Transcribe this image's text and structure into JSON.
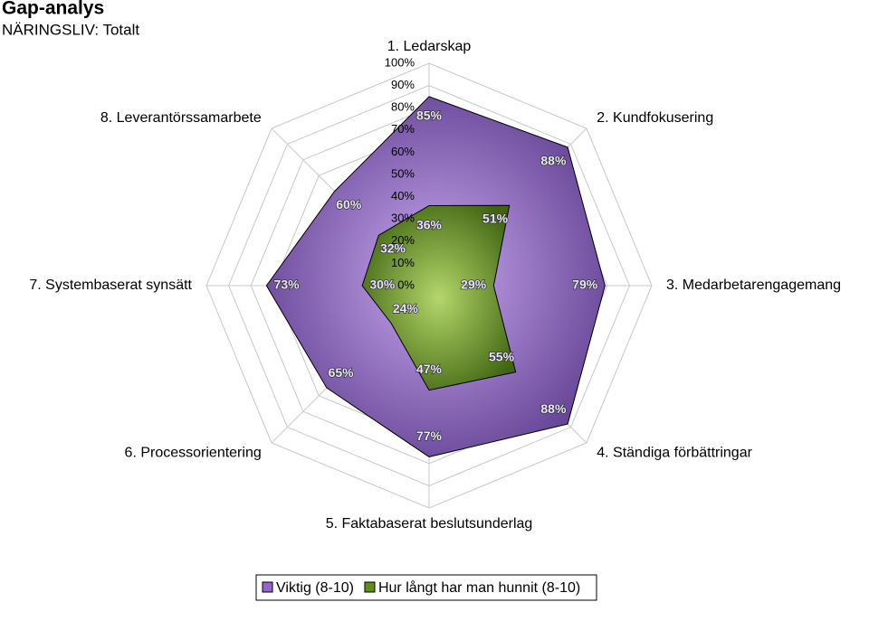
{
  "chart_data": {
    "type": "radar",
    "title": "Gap-analys",
    "subtitle": "NÄRINGSLIV: Totalt",
    "categories": [
      "1. Ledarskap",
      "2. Kundfokusering",
      "3. Medarbetarengagemang",
      "4. Ständiga förbättringar",
      "5. Faktabaserat beslutsunderlag",
      "6. Processorientering",
      "7. Systembaserat synsätt",
      "8. Leverantörssamarbete"
    ],
    "series": [
      {
        "name": "Viktig (8-10)",
        "color": "#9466cc",
        "values": [
          85,
          88,
          79,
          88,
          77,
          65,
          73,
          60
        ],
        "value_labels": [
          "85%",
          "88%",
          "79%",
          "88%",
          "77%",
          "65%",
          "73%",
          "60%"
        ]
      },
      {
        "name": "Hur långt har man hunnit (8-10)",
        "color": "#5f8f1a",
        "values": [
          36,
          51,
          29,
          55,
          47,
          24,
          30,
          32
        ],
        "value_labels": [
          "36%",
          "51%",
          "29%",
          "55%",
          "47%",
          "24%",
          "30%",
          "32%"
        ]
      }
    ],
    "ylim": [
      0,
      100
    ],
    "yticks": [
      {
        "value": 0,
        "label": "0%"
      },
      {
        "value": 10,
        "label": "10%"
      },
      {
        "value": 20,
        "label": "20%"
      },
      {
        "value": 30,
        "label": "30%"
      },
      {
        "value": 40,
        "label": "40%"
      },
      {
        "value": 50,
        "label": "50%"
      },
      {
        "value": 60,
        "label": "60%"
      },
      {
        "value": 70,
        "label": "70%"
      },
      {
        "value": 80,
        "label": "80%"
      },
      {
        "value": 90,
        "label": "90%"
      },
      {
        "value": 100,
        "label": "100%"
      }
    ],
    "grid": true,
    "legend": "bottom"
  }
}
